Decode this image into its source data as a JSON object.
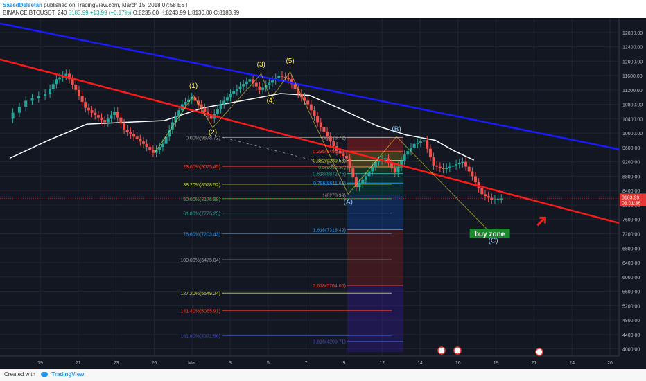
{
  "header": {
    "author": "SaeedDelsetan",
    "published": "published on TradingView.com, March 15, 2018 07:58 EST",
    "symbol": "BINANCE:BTCUSDT, 240",
    "last": "8183.99",
    "change": "+13.99 (+0.17%)",
    "open": "O:8235.00",
    "high": "H:8243.99",
    "low": "L:8130.00",
    "close": "C:8183.99"
  },
  "footer": {
    "created_with": "Created with",
    "brand": "TradingView"
  },
  "colors": {
    "up": "#26a69a",
    "down": "#ef5350",
    "red_trend": "#ff1a1a",
    "blue_trend": "#1a1aff",
    "ma": "#ffffff",
    "bg": "#131722",
    "wave_label": "#ffeb3b",
    "abc_label": "#90caf9"
  },
  "chart_data": {
    "type": "candlestick",
    "price_axis": {
      "ticks": [
        "12800.00",
        "12400.00",
        "12000.00",
        "11600.00",
        "11200.00",
        "10800.00",
        "10400.00",
        "10000.00",
        "9600.00",
        "9200.00",
        "8800.00",
        "8400.00",
        "8000.00",
        "7600.00",
        "7200.00",
        "6800.00",
        "6400.00",
        "6000.00",
        "5600.00",
        "5200.00",
        "4800.00",
        "4400.00",
        "4000.00"
      ],
      "range": [
        3800,
        13200
      ],
      "last_price": "8183.99",
      "countdown": "03:01:36"
    },
    "time_axis": {
      "ticks": [
        "19",
        "21",
        "23",
        "26",
        "Mar",
        "3",
        "5",
        "7",
        "9",
        "12",
        "14",
        "16",
        "19",
        "21",
        "24",
        "26"
      ]
    },
    "price_path": [
      [
        0,
        10400
      ],
      [
        2,
        10900
      ],
      [
        4,
        11100
      ],
      [
        5,
        11500
      ],
      [
        6,
        11650
      ],
      [
        7,
        11200
      ],
      [
        8,
        10700
      ],
      [
        9,
        10500
      ],
      [
        10,
        10300
      ],
      [
        11,
        10600
      ],
      [
        12,
        10100
      ],
      [
        13,
        9900
      ],
      [
        14,
        9700
      ],
      [
        15,
        9450
      ],
      [
        16,
        9700
      ],
      [
        17,
        10300
      ],
      [
        18,
        10800
      ],
      [
        19,
        11000
      ],
      [
        20,
        10700
      ],
      [
        21,
        10400
      ],
      [
        22,
        10800
      ],
      [
        23,
        11100
      ],
      [
        24,
        11300
      ],
      [
        25,
        11500
      ],
      [
        26,
        11200
      ],
      [
        27,
        11400
      ],
      [
        28,
        11600
      ],
      [
        29,
        11500
      ],
      [
        30,
        11100
      ],
      [
        31,
        10800
      ],
      [
        32,
        10300
      ],
      [
        33,
        9900
      ],
      [
        34,
        9500
      ],
      [
        35,
        9300
      ],
      [
        36,
        8500
      ],
      [
        37,
        8800
      ],
      [
        38,
        9200
      ],
      [
        39,
        9300
      ],
      [
        40,
        8900
      ],
      [
        41,
        9400
      ],
      [
        42,
        9700
      ],
      [
        43,
        9800
      ],
      [
        44,
        9100
      ],
      [
        45,
        9000
      ],
      [
        46,
        9100
      ],
      [
        47,
        9200
      ],
      [
        48,
        8800
      ],
      [
        49,
        8300
      ],
      [
        50,
        8150
      ],
      [
        51,
        8183.99
      ]
    ],
    "moving_average": [
      [
        0,
        9300
      ],
      [
        4,
        9800
      ],
      [
        8,
        10250
      ],
      [
        12,
        10300
      ],
      [
        16,
        10350
      ],
      [
        20,
        10700
      ],
      [
        24,
        10900
      ],
      [
        28,
        11100
      ],
      [
        31,
        11050
      ],
      [
        34,
        10700
      ],
      [
        38,
        10200
      ],
      [
        41,
        9950
      ],
      [
        44,
        9800
      ],
      [
        46,
        9500
      ],
      [
        48,
        9250
      ]
    ],
    "wave_labels": [
      {
        "label": "(1)",
        "x": 19,
        "y": 11250
      },
      {
        "label": "(2)",
        "x": 21,
        "y": 9960
      },
      {
        "label": "(3)",
        "x": 26,
        "y": 11850
      },
      {
        "label": "(4)",
        "x": 27,
        "y": 10850
      },
      {
        "label": "(5)",
        "x": 29,
        "y": 11950
      },
      {
        "label": "(A)",
        "x": 35,
        "y": 8030
      },
      {
        "label": "(B)",
        "x": 40,
        "y": 10050
      },
      {
        "label": "(C)",
        "x": 50,
        "y": 6950
      }
    ],
    "fib_retracement": [
      {
        "label": "0.00%(9878.72)",
        "price": 9878.72,
        "color": "#9e9e9e"
      },
      {
        "label": "23.60%(9075.45)",
        "price": 9075.45,
        "color": "#f44336"
      },
      {
        "label": "38.20%(8578.52)",
        "price": 8578.52,
        "color": "#cddc39"
      },
      {
        "label": "50.00%(8176.88)",
        "price": 8176.88,
        "color": "#4caf50"
      },
      {
        "label": "61.80%(7775.25)",
        "price": 7775.25,
        "color": "#26a69a"
      },
      {
        "label": "78.60%(7203.43)",
        "price": 7203.43,
        "color": "#2196f3"
      },
      {
        "label": "100.00%(6475.04)",
        "price": 6475.04,
        "color": "#9e9e9e"
      },
      {
        "label": "127.20%(5549.24)",
        "price": 5549.24,
        "color": "#cddc39"
      },
      {
        "label": "141.40%(5065.91)",
        "price": 5065.91,
        "color": "#f44336"
      },
      {
        "label": "161.80%(4371.56)",
        "price": 4371.56,
        "color": "#3f51b5"
      }
    ],
    "fib_extension": [
      {
        "label": "0(9878.72)",
        "price": 9878.72,
        "color": "#9e9e9e"
      },
      {
        "label": "0.236(9496.87)",
        "price": 9496.87,
        "color": "#f44336"
      },
      {
        "label": "0.382(9239.58)",
        "price": 9239.58,
        "color": "#cddc39"
      },
      {
        "label": "0.5(9056.17)",
        "price": 9056.17,
        "color": "#4caf50"
      },
      {
        "label": "0.618(8872.75)",
        "price": 8872.75,
        "color": "#26a69a"
      },
      {
        "label": "0.786(8611.65)",
        "price": 8611.65,
        "color": "#2196f3"
      },
      {
        "label": "1(8278.99)",
        "price": 8278.99,
        "color": "#9e9e9e"
      },
      {
        "label": "1.618(7318.49)",
        "price": 7318.49,
        "color": "#2196f3"
      },
      {
        "label": "2.618(5764.06)",
        "price": 5764.06,
        "color": "#f44336"
      },
      {
        "label": "3.618(4209.71)",
        "price": 4209.71,
        "color": "#3f51b5"
      }
    ],
    "trendlines": [
      {
        "name": "blue",
        "from": [
          -1,
          13050
        ],
        "to": [
          63,
          9550
        ]
      },
      {
        "name": "red",
        "from": [
          -1,
          12050
        ],
        "to": [
          63,
          7500
        ]
      }
    ],
    "annotation": {
      "label": "buy zone",
      "x": 50,
      "y": 7150
    }
  }
}
